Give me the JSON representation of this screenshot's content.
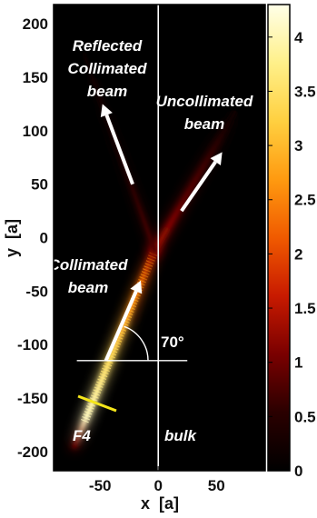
{
  "chart_data": {
    "type": "heatmap",
    "title": "",
    "xlabel_var": "x",
    "xlabel_unit": "[a]",
    "ylabel_var": "y",
    "ylabel_unit": "[a]",
    "xlim": [
      -90,
      92
    ],
    "ylim": [
      -218,
      218
    ],
    "xticks": [
      -50,
      0,
      50
    ],
    "yticks": [
      200,
      150,
      100,
      50,
      0,
      -50,
      -100,
      -150,
      -200
    ],
    "colorbar": {
      "min": 0,
      "max": 4.3,
      "ticks": [
        4,
        3.5,
        3,
        2.5,
        2,
        1.5,
        1,
        0.5,
        0
      ],
      "colormap": [
        "#000000",
        "#2a0000",
        "#7a0000",
        "#c81a00",
        "#f05a00",
        "#ff9a10",
        "#ffd040",
        "#fff08a",
        "#ffffe8"
      ]
    },
    "interface_x": 0,
    "beams": [
      {
        "name": "Collimated beam",
        "from": [
          -72,
          -195
        ],
        "to": [
          -3,
          -12
        ],
        "peak": 4.3
      },
      {
        "name": "Uncollimated beam",
        "from": [
          -3,
          -12
        ],
        "to": [
          70,
          125
        ],
        "peak": 1.9
      },
      {
        "name": "Reflected Collimated beam",
        "from": [
          -3,
          -12
        ],
        "to": [
          -70,
          190
        ],
        "peak": 1.1
      }
    ],
    "angle_annotation": {
      "label": "70°",
      "vertex": [
        -40,
        -115
      ],
      "degrees": 70
    },
    "labels": {
      "reflected": [
        "Reflected",
        "Collimated",
        "beam"
      ],
      "uncollimated": [
        "Uncollimated",
        "beam"
      ],
      "collimated": [
        "Collimated",
        "beam"
      ],
      "f4": "F4",
      "bulk": "bulk"
    },
    "colors": {
      "arrow": "#ffffff",
      "marker_line": "#f5e61a",
      "interface_line": "#ffffff"
    }
  }
}
